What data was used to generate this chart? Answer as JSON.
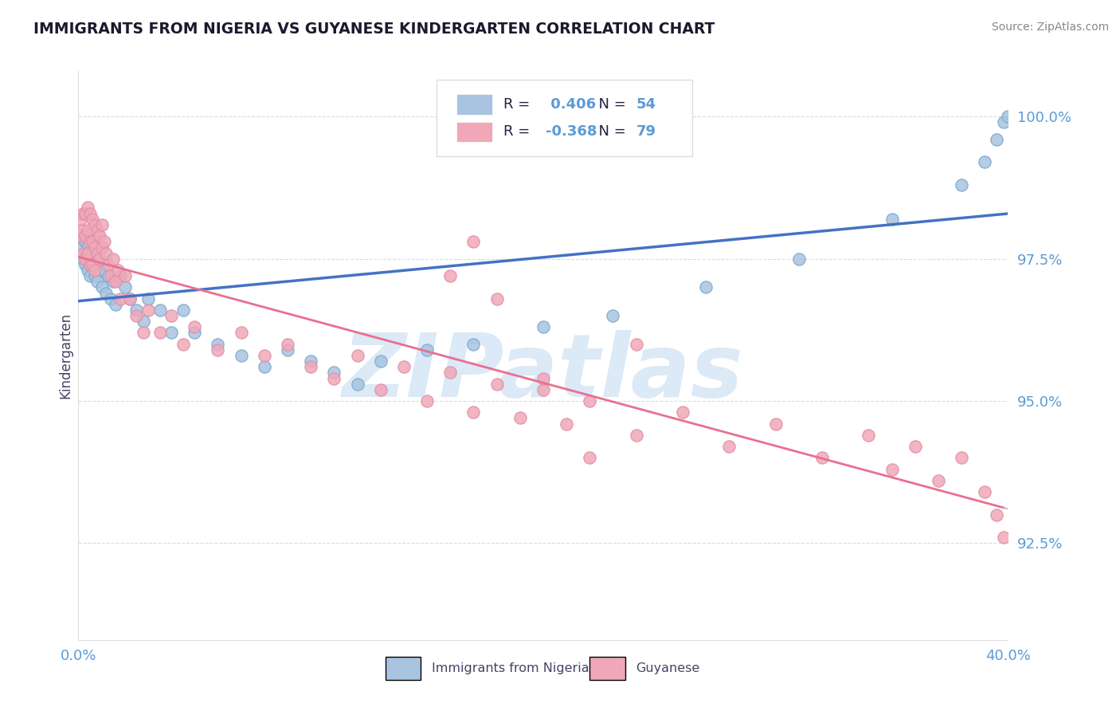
{
  "title": "IMMIGRANTS FROM NIGERIA VS GUYANESE KINDERGARTEN CORRELATION CHART",
  "source_text": "Source: ZipAtlas.com",
  "ylabel": "Kindergarten",
  "xlim": [
    0.0,
    0.4
  ],
  "ylim": [
    0.908,
    1.008
  ],
  "yticks": [
    1.0,
    0.975,
    0.95,
    0.925
  ],
  "ytick_labels": [
    "100.0%",
    "97.5%",
    "95.0%",
    "92.5%"
  ],
  "xticks": [
    0.0,
    0.4
  ],
  "xtick_labels": [
    "0.0%",
    "40.0%"
  ],
  "blue_R": 0.406,
  "blue_N": 54,
  "pink_R": -0.368,
  "pink_N": 79,
  "blue_label": "Immigrants from Nigeria",
  "pink_label": "Guyanese",
  "blue_color": "#A8C4E0",
  "pink_color": "#F0A8B8",
  "blue_line_color": "#4472C4",
  "pink_line_color": "#E87090",
  "watermark": "ZIPatlas",
  "watermark_color": "#C0D8F0",
  "title_color": "#1a1a2e",
  "tick_color": "#5B9BD5",
  "grid_color": "#CCCCCC",
  "background_color": "#FFFFFF",
  "legend_r_color": "#5B9BD5",
  "legend_n_color": "#5B9BD5",
  "blue_x": [
    0.001,
    0.002,
    0.002,
    0.003,
    0.003,
    0.004,
    0.004,
    0.005,
    0.005,
    0.006,
    0.006,
    0.007,
    0.007,
    0.008,
    0.008,
    0.009,
    0.01,
    0.01,
    0.011,
    0.012,
    0.013,
    0.014,
    0.015,
    0.016,
    0.018,
    0.02,
    0.022,
    0.025,
    0.028,
    0.03,
    0.035,
    0.04,
    0.045,
    0.05,
    0.06,
    0.07,
    0.08,
    0.09,
    0.1,
    0.11,
    0.12,
    0.13,
    0.15,
    0.17,
    0.2,
    0.23,
    0.27,
    0.31,
    0.35,
    0.38,
    0.39,
    0.395,
    0.398,
    0.4
  ],
  "blue_y": [
    0.979,
    0.977,
    0.975,
    0.978,
    0.974,
    0.977,
    0.973,
    0.976,
    0.972,
    0.978,
    0.975,
    0.976,
    0.972,
    0.975,
    0.971,
    0.974,
    0.977,
    0.97,
    0.973,
    0.969,
    0.972,
    0.968,
    0.971,
    0.967,
    0.972,
    0.97,
    0.968,
    0.966,
    0.964,
    0.968,
    0.966,
    0.962,
    0.966,
    0.962,
    0.96,
    0.958,
    0.956,
    0.959,
    0.957,
    0.955,
    0.953,
    0.957,
    0.959,
    0.96,
    0.963,
    0.965,
    0.97,
    0.975,
    0.982,
    0.988,
    0.992,
    0.996,
    0.999,
    1.0
  ],
  "pink_x": [
    0.001,
    0.001,
    0.002,
    0.002,
    0.002,
    0.003,
    0.003,
    0.003,
    0.004,
    0.004,
    0.004,
    0.005,
    0.005,
    0.005,
    0.006,
    0.006,
    0.006,
    0.007,
    0.007,
    0.007,
    0.008,
    0.008,
    0.009,
    0.009,
    0.01,
    0.01,
    0.011,
    0.012,
    0.013,
    0.014,
    0.015,
    0.016,
    0.017,
    0.018,
    0.02,
    0.022,
    0.025,
    0.028,
    0.03,
    0.035,
    0.04,
    0.045,
    0.05,
    0.06,
    0.07,
    0.08,
    0.09,
    0.1,
    0.11,
    0.12,
    0.13,
    0.14,
    0.15,
    0.16,
    0.17,
    0.18,
    0.19,
    0.2,
    0.21,
    0.22,
    0.24,
    0.26,
    0.28,
    0.3,
    0.32,
    0.34,
    0.35,
    0.36,
    0.37,
    0.38,
    0.39,
    0.395,
    0.398,
    0.18,
    0.17,
    0.16,
    0.24,
    0.2,
    0.22
  ],
  "pink_y": [
    0.982,
    0.979,
    0.983,
    0.98,
    0.976,
    0.983,
    0.979,
    0.975,
    0.984,
    0.98,
    0.976,
    0.983,
    0.978,
    0.974,
    0.982,
    0.978,
    0.974,
    0.981,
    0.977,
    0.973,
    0.98,
    0.976,
    0.979,
    0.975,
    0.981,
    0.977,
    0.978,
    0.976,
    0.974,
    0.972,
    0.975,
    0.971,
    0.973,
    0.968,
    0.972,
    0.968,
    0.965,
    0.962,
    0.966,
    0.962,
    0.965,
    0.96,
    0.963,
    0.959,
    0.962,
    0.958,
    0.96,
    0.956,
    0.954,
    0.958,
    0.952,
    0.956,
    0.95,
    0.955,
    0.948,
    0.953,
    0.947,
    0.952,
    0.946,
    0.95,
    0.944,
    0.948,
    0.942,
    0.946,
    0.94,
    0.944,
    0.938,
    0.942,
    0.936,
    0.94,
    0.934,
    0.93,
    0.926,
    0.968,
    0.978,
    0.972,
    0.96,
    0.954,
    0.94
  ]
}
